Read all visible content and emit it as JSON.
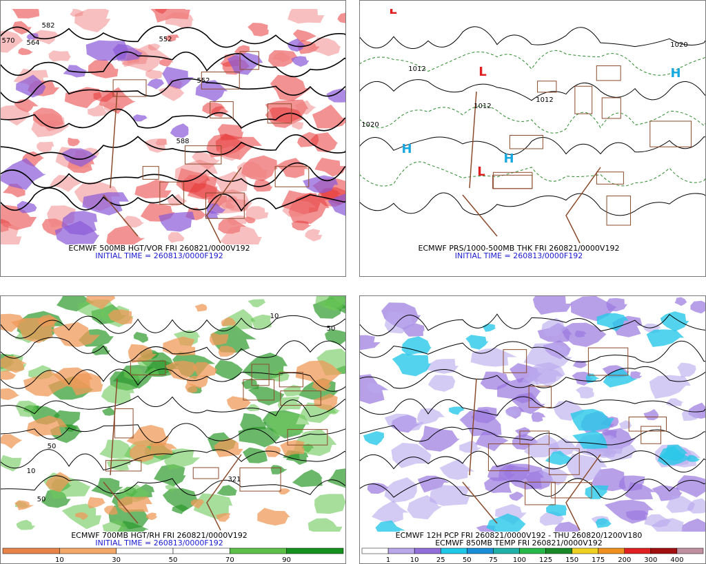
{
  "panels": [
    {
      "captions": [
        "ECMWF 500MB HGT/VOR FRI 260821/0000V192",
        "INITIAL TIME = 260813/0000F192"
      ],
      "labels": [
        {
          "text": "582",
          "color": "#000000"
        },
        {
          "text": "564",
          "color": "#000000"
        },
        {
          "text": "552",
          "color": "#000000"
        },
        {
          "text": "552",
          "color": "#000000"
        },
        {
          "text": "570",
          "color": "#000000"
        },
        {
          "text": "588",
          "color": "#000000"
        }
      ]
    },
    {
      "captions": [
        "ECMWF PRS/1000-500MB THK FRI 260821/0000V192",
        "INITIAL TIME = 260813/0000F192"
      ],
      "labels": [
        {
          "text": "H",
          "color": "#1aa8e0"
        },
        {
          "text": "H",
          "color": "#1aa8e0"
        },
        {
          "text": "H",
          "color": "#1aa8e0"
        },
        {
          "text": "L",
          "color": "#e02020"
        },
        {
          "text": "L",
          "color": "#e02020"
        },
        {
          "text": "L",
          "color": "#e02020"
        },
        {
          "text": "1020",
          "color": "#000000"
        },
        {
          "text": "1012",
          "color": "#000000"
        },
        {
          "text": "1012",
          "color": "#000000"
        },
        {
          "text": "1020",
          "color": "#000000"
        },
        {
          "text": "1012",
          "color": "#000000"
        }
      ]
    },
    {
      "captions": [
        "ECMWF 700MB HGT/RH FRI 260821/0000V192",
        "INITIAL TIME = 260813/0000F192"
      ],
      "labels": [
        {
          "text": "50",
          "color": "#000000"
        },
        {
          "text": "10",
          "color": "#000000"
        },
        {
          "text": "50",
          "color": "#000000"
        },
        {
          "text": "321",
          "color": "#000000"
        },
        {
          "text": "50",
          "color": "#000000"
        },
        {
          "text": "10",
          "color": "#000000"
        }
      ],
      "colorbar": {
        "colors": [
          "#e8844a",
          "#f2a868",
          "#ffffff",
          "#ffffff",
          "#5cc048",
          "#16901c"
        ],
        "labels": [
          "10",
          "30",
          "50",
          "70",
          "90"
        ]
      }
    },
    {
      "captions": [
        "ECMWF 12H PCP FRI 260821/0000V192 - THU 260820/1200V180",
        "ECMWF 850MB TEMP FRI 260821/0000V192"
      ],
      "labels": [],
      "colorbar": {
        "colors": [
          "#ffffff",
          "#b8a8e8",
          "#9070d8",
          "#20c8e8",
          "#1890d8",
          "#20b0a8",
          "#28b848",
          "#188828",
          "#f0d020",
          "#f09020",
          "#e02020",
          "#a01010",
          "#c090a0"
        ],
        "labels": [
          "1",
          "10",
          "25",
          "50",
          "75",
          "100",
          "125",
          "150",
          "175",
          "200",
          "300",
          "400"
        ]
      }
    }
  ]
}
